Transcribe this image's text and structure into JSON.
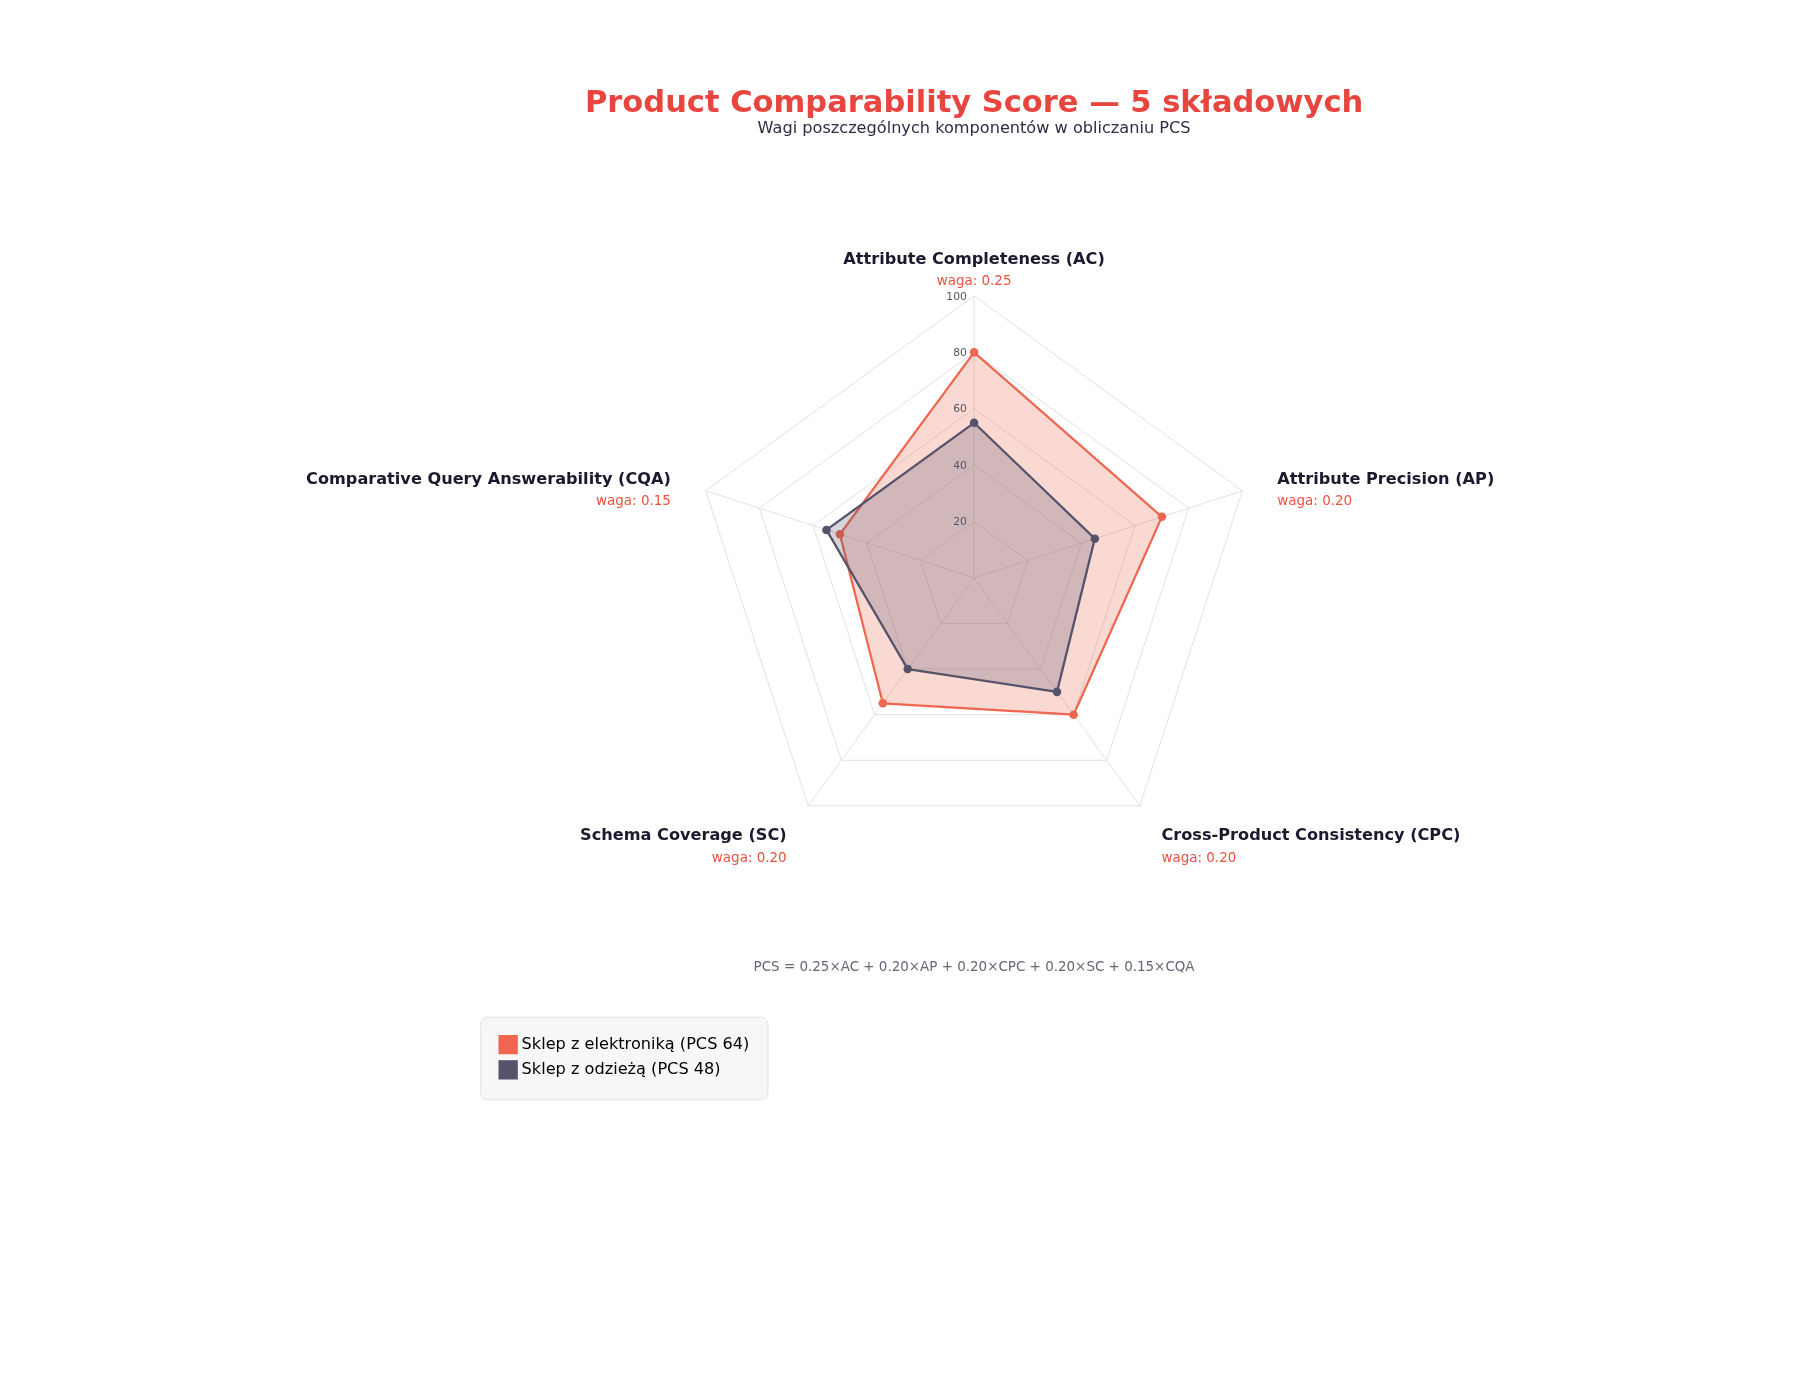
{
  "chart_data": {
    "type": "radar",
    "title": "Product Comparability Score — 5 składowych",
    "subtitle": "Wagi poszczególnych komponentów w obliczaniu PCS",
    "categories": [
      "Attribute Completeness (AC)",
      "Attribute Precision (AP)",
      "Cross-Product Consistency (CPC)",
      "Schema Coverage (SC)",
      "Comparative Query Answerability (CQA)"
    ],
    "series": [
      {
        "name": "Sklep z elektroniką (PCS 64)",
        "color": "#ee6650",
        "values": [
          80,
          70,
          60,
          55,
          50
        ]
      },
      {
        "name": "Sklep z odzieżą (PCS 48)",
        "color": "#55526a",
        "values": [
          55,
          45,
          50,
          40,
          55
        ]
      }
    ],
    "ylim": [
      0,
      100
    ],
    "yticks": [
      20,
      40,
      60,
      80,
      100
    ],
    "grid": true,
    "marker": "circle",
    "legend": "bottom",
    "annotations": [
      "waga: 0.25",
      "waga: 0.20",
      "waga: 0.20",
      "waga: 0.20",
      "waga: 0.15",
      "PCS = 0.25×AC + 0.20×AP + 0.20×CPC + 0.20×SC + 0.15×CQA"
    ]
  }
}
